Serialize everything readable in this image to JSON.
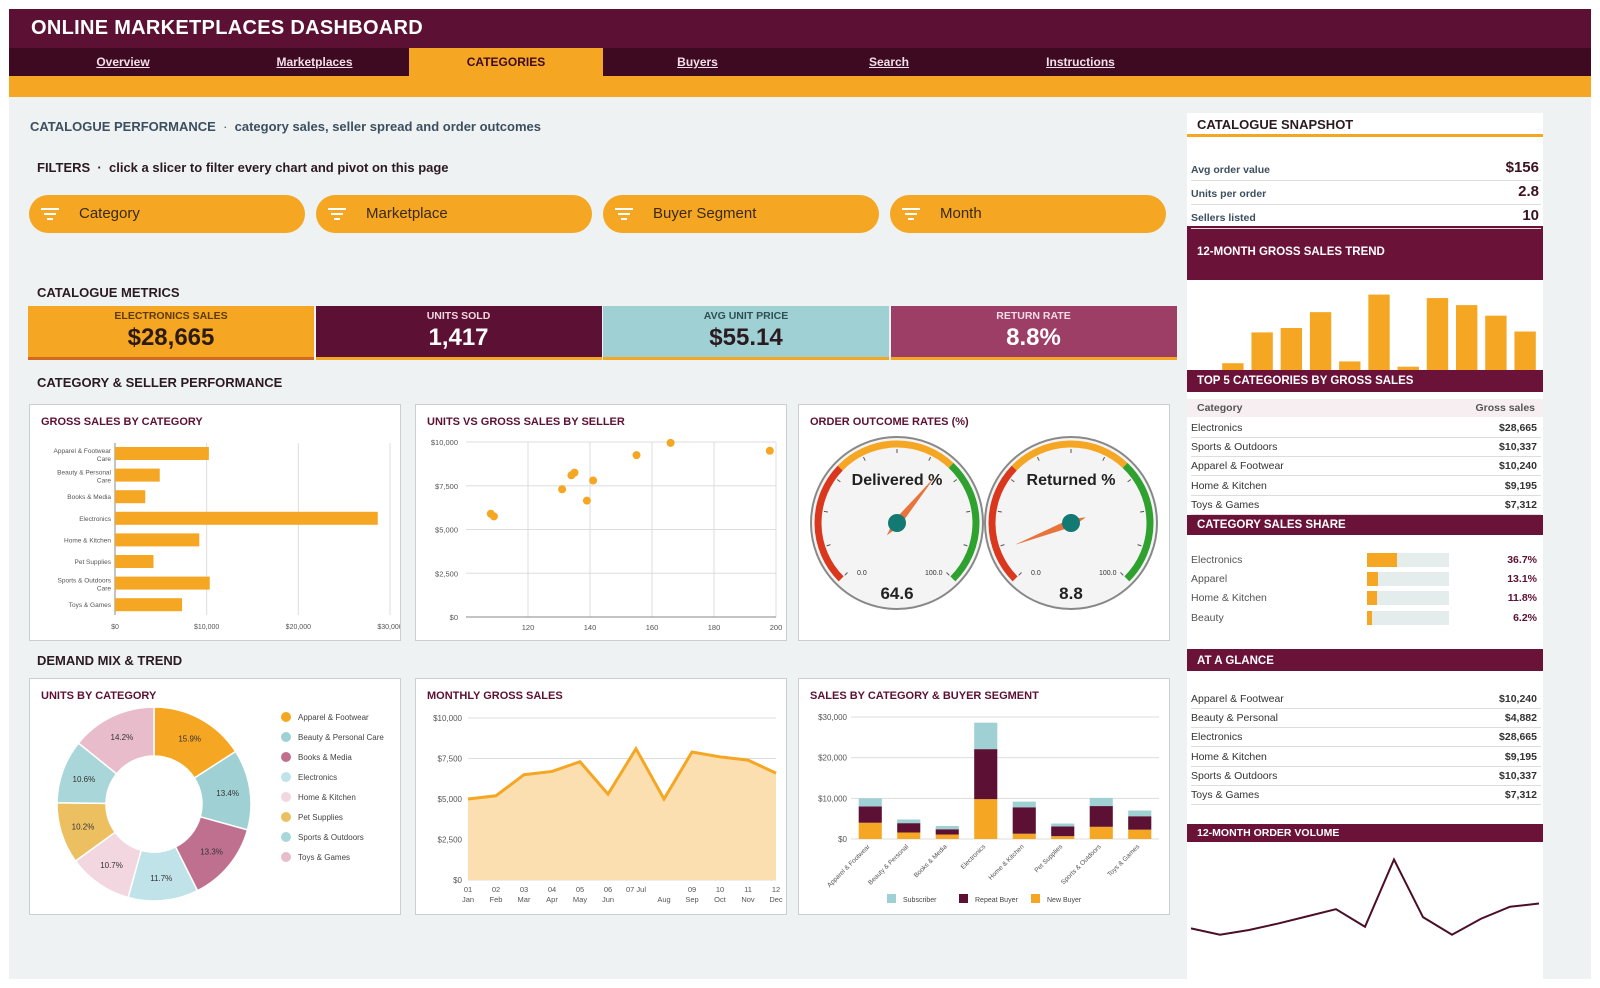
{
  "app": {
    "title": "ONLINE MARKETPLACES DASHBOARD"
  },
  "nav": {
    "tabs": [
      "Overview",
      "Marketplaces",
      "CATEGORIES",
      "Buyers",
      "Search",
      "Instructions"
    ],
    "active": 2
  },
  "performance": {
    "heading": "CATALOGUE PERFORMANCE",
    "subtitle": "category sales, seller spread and order outcomes"
  },
  "filters": {
    "heading": "FILTERS",
    "hint": "click a slicer to filter every chart and pivot on this page",
    "slicers": [
      "Category",
      "Marketplace",
      "Buyer Segment",
      "Month"
    ],
    "icon": "filter-icon"
  },
  "metrics": {
    "heading": "CATALOGUE METRICS",
    "cards": [
      {
        "label": "ELECTRONICS SALES",
        "value": "$28,665",
        "bg": "#f5a623",
        "fg": "#2b1a10",
        "labelColor": "#5c3a05"
      },
      {
        "label": "UNITS SOLD",
        "value": "1,417",
        "bg": "#5c1033",
        "fg": "#ffffff",
        "labelColor": "#f0d6e0"
      },
      {
        "label": "AVG UNIT PRICE",
        "value": "$55.14",
        "bg": "#9fd0d3",
        "fg": "#2b1a20",
        "labelColor": "#2f4f55"
      },
      {
        "label": "RETURN RATE",
        "value": "8.8%",
        "bg": "#9c3e66",
        "fg": "#ffffff",
        "labelColor": "#f5dbe6"
      }
    ]
  },
  "sections": {
    "perf": "CATEGORY & SELLER PERFORMANCE",
    "demand": "DEMAND MIX & TREND"
  },
  "charts": {
    "grossByCategory": {
      "title": "GROSS SALES BY CATEGORY"
    },
    "unitsVsGross": {
      "title": "UNITS VS GROSS SALES BY SELLER"
    },
    "orderOutcome": {
      "title": "ORDER OUTCOME RATES (%)"
    },
    "unitsByCategory": {
      "title": "UNITS BY CATEGORY"
    },
    "monthlyGross": {
      "title": "MONTHLY GROSS SALES"
    },
    "salesBySegment": {
      "title": "SALES BY CATEGORY & BUYER SEGMENT"
    }
  },
  "chart_data": [
    {
      "type": "bar",
      "orientation": "horizontal",
      "title": "GROSS SALES BY CATEGORY",
      "categories": [
        "Apparel & Footwear",
        "Beauty & Personal Care",
        "Books & Media",
        "Electronics",
        "Home & Kitchen",
        "Pet Supplies",
        "Sports & Outdoors",
        "Toys & Games"
      ],
      "values": [
        10240,
        4882,
        3300,
        28665,
        9195,
        4200,
        10337,
        7312
      ],
      "xlim": [
        0,
        30000
      ],
      "xticks": [
        "$0",
        "$10,000",
        "$20,000",
        "$30,000"
      ],
      "grid": true
    },
    {
      "type": "scatter",
      "title": "UNITS VS GROSS SALES BY SELLER",
      "x": [
        108,
        109,
        131,
        134,
        135,
        139,
        141,
        155,
        166,
        198
      ],
      "y": [
        5900,
        5750,
        7300,
        8100,
        8250,
        6650,
        7800,
        9250,
        9950,
        9500
      ],
      "xlim": [
        100,
        200
      ],
      "ylim": [
        0,
        10000
      ],
      "xticks": [
        "120",
        "140",
        "160",
        "180",
        "200"
      ],
      "yticks": [
        "$0",
        "$2,500",
        "$5,000",
        "$7,500",
        "$10,000"
      ],
      "grid": true
    },
    {
      "type": "gauge",
      "title": "ORDER OUTCOME RATES (%)",
      "gauges": [
        {
          "label": "Delivered %",
          "value": 64.6,
          "display": "64.6"
        },
        {
          "label": "Returned %",
          "value": 8.8,
          "display": "8.8"
        }
      ],
      "range": [
        0,
        100
      ],
      "rangeLabels": [
        "0.0",
        "100.0"
      ]
    },
    {
      "type": "pie",
      "donut": true,
      "title": "UNITS BY CATEGORY",
      "labels": [
        "Apparel & Footwear",
        "Beauty & Personal Care",
        "Books & Media",
        "Electronics",
        "Home & Kitchen",
        "Pet Supplies",
        "Sports & Outdoors",
        "Toys & Games"
      ],
      "values": [
        15.9,
        13.4,
        13.3,
        11.7,
        10.7,
        10.2,
        10.6,
        14.2
      ],
      "display": [
        "15.9%",
        "13.4%",
        "13.3%",
        "11.7%",
        "10.7%",
        "10.2%",
        "10.6%",
        "14.2%"
      ],
      "colors": [
        "#f5a623",
        "#9fd0d3",
        "#c0708f",
        "#bfe3e8",
        "#f2d6e0",
        "#ecc060",
        "#a9d6d8",
        "#e8bccb"
      ],
      "legend": "right"
    },
    {
      "type": "area",
      "title": "MONTHLY GROSS SALES",
      "x": [
        "01 Jan",
        "02 Feb",
        "03 Mar",
        "04 Apr",
        "05 May",
        "06 Jun",
        "07 Jul",
        "08 Aug",
        "09 Sep",
        "10 Oct",
        "11 Nov",
        "12 Dec"
      ],
      "xtick_top": [
        "01",
        "02",
        "03",
        "04",
        "05",
        "06",
        "07 Jul",
        "",
        "09",
        "10",
        "11",
        "12"
      ],
      "xtick_bottom": [
        "Jan",
        "Feb",
        "Mar",
        "Apr",
        "May",
        "Jun",
        "",
        "Aug",
        "Sep",
        "Oct",
        "Nov",
        "Dec"
      ],
      "values": [
        5000,
        5200,
        6500,
        6700,
        7300,
        5300,
        8100,
        5000,
        7900,
        7600,
        7400,
        6600
      ],
      "ylim": [
        0,
        10000
      ],
      "yticks": [
        "$0",
        "$2,500",
        "$5,000",
        "$7,500",
        "$10,000"
      ]
    },
    {
      "type": "bar",
      "stacked": true,
      "title": "SALES BY CATEGORY & BUYER SEGMENT",
      "categories": [
        "Apparel & Footwear",
        "Beauty & Personal",
        "Books & Media",
        "Electronics",
        "Home & Kitchen",
        "Pet Supplies",
        "Sports & Outdoors",
        "Toys & Games"
      ],
      "series": [
        {
          "name": "New Buyer",
          "color": "#f5a623",
          "values": [
            4000,
            1600,
            1100,
            9800,
            1300,
            700,
            3000,
            2300
          ]
        },
        {
          "name": "Repeat Buyer",
          "color": "#5c1033",
          "values": [
            4000,
            2300,
            1300,
            12300,
            6500,
            2400,
            5100,
            3300
          ]
        },
        {
          "name": "Subscriber",
          "color": "#9fd0d3",
          "values": [
            2000,
            900,
            800,
            6500,
            1400,
            700,
            2000,
            1400
          ]
        }
      ],
      "legend_order": [
        "Subscriber",
        "Repeat Buyer",
        "New Buyer"
      ],
      "ylim": [
        0,
        30000
      ],
      "yticks": [
        "$0",
        "$10,000",
        "$20,000",
        "$30,000"
      ]
    },
    {
      "type": "bar",
      "title": "12-MONTH GROSS SALES TREND",
      "values": [
        2,
        10,
        45,
        50,
        68,
        12,
        88,
        6,
        84,
        76,
        64,
        46
      ],
      "ylim": [
        0,
        100
      ]
    },
    {
      "type": "line",
      "title": "12-MONTH ORDER VOLUME",
      "values": [
        42,
        34,
        40,
        48,
        57,
        66,
        44,
        128,
        56,
        34,
        54,
        69,
        73
      ],
      "ylim": [
        0,
        140
      ]
    }
  ],
  "sidebar": {
    "snapshot_title": "CATALOGUE SNAPSHOT",
    "snapshot": [
      {
        "label": "Avg order value",
        "value": "$156"
      },
      {
        "label": "Units per order",
        "value": "2.8"
      },
      {
        "label": "Sellers listed",
        "value": "10"
      }
    ],
    "trend_title": "12-MONTH GROSS SALES TREND",
    "top5_title": "TOP 5 CATEGORIES BY GROSS SALES",
    "top5_headers": [
      "Category",
      "Gross sales"
    ],
    "top5": [
      {
        "k": "Electronics",
        "v": "$28,665"
      },
      {
        "k": "Sports & Outdoors",
        "v": "$10,337"
      },
      {
        "k": "Apparel & Footwear",
        "v": "$10,240"
      },
      {
        "k": "Home & Kitchen",
        "v": "$9,195"
      },
      {
        "k": "Toys & Games",
        "v": "$7,312"
      }
    ],
    "share_title": "CATEGORY SALES SHARE",
    "share": [
      {
        "k": "Electronics",
        "v": "36.7%",
        "pct": 36.7
      },
      {
        "k": "Apparel",
        "v": "13.1%",
        "pct": 13.1
      },
      {
        "k": "Home & Kitchen",
        "v": "11.8%",
        "pct": 11.8
      },
      {
        "k": "Beauty",
        "v": "6.2%",
        "pct": 6.2
      }
    ],
    "glance_title": "AT A GLANCE",
    "glance": [
      {
        "k": "Apparel & Footwear",
        "v": "$10,240"
      },
      {
        "k": "Beauty & Personal",
        "v": "$4,882"
      },
      {
        "k": "Electronics",
        "v": "$28,665"
      },
      {
        "k": "Home & Kitchen",
        "v": "$9,195"
      },
      {
        "k": "Sports & Outdoors",
        "v": "$10,337"
      },
      {
        "k": "Toys & Games",
        "v": "$7,312"
      }
    ],
    "volume_title": "12-MONTH ORDER VOLUME"
  }
}
